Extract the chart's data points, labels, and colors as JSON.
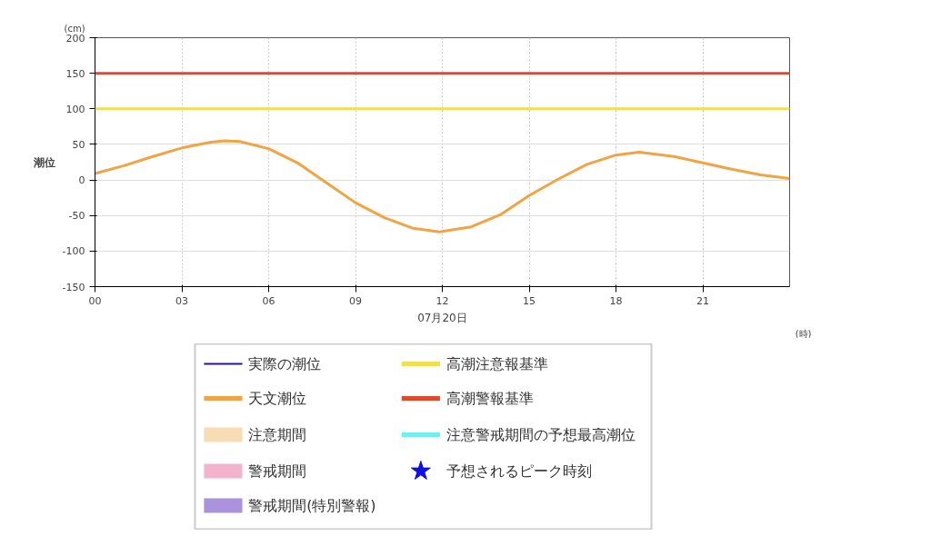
{
  "chart_data": {
    "type": "line",
    "xlabel": "07月20日",
    "ylabel": "潮位",
    "annotations": [
      "(cm)",
      "(時)"
    ],
    "xlim": [
      0,
      24
    ],
    "ylim": [
      -150,
      200
    ],
    "xticks": [
      {
        "value": 0,
        "label": "00"
      },
      {
        "value": 3,
        "label": "03"
      },
      {
        "value": 6,
        "label": "06"
      },
      {
        "value": 9,
        "label": "09"
      },
      {
        "value": 12,
        "label": "12"
      },
      {
        "value": 15,
        "label": "15"
      },
      {
        "value": 18,
        "label": "18"
      },
      {
        "value": 21,
        "label": "21"
      }
    ],
    "yticks": [
      -150,
      -100,
      -50,
      0,
      50,
      100,
      150,
      200
    ],
    "grid": true,
    "legend": "bottom",
    "marker": "none",
    "line_style": "solid",
    "series": [
      {
        "name": "実際の潮位",
        "type": "line",
        "color": "#2a0fa0"
      },
      {
        "name": "天文潮位",
        "color": "#f0a443",
        "x": [
          0,
          1,
          2,
          3,
          4,
          4.5,
          5,
          6,
          7,
          8,
          9,
          10,
          11,
          11.9,
          13,
          14,
          15,
          16,
          17,
          18,
          18.8,
          20,
          21,
          22,
          23,
          24
        ],
        "values": [
          9,
          20,
          33,
          45,
          53,
          55,
          54,
          44,
          24,
          -4,
          -32,
          -53,
          -68,
          -73,
          -66,
          -49,
          -22,
          1,
          22,
          35,
          39,
          33,
          24,
          15,
          7,
          2
        ]
      },
      {
        "name": "注意期間",
        "type": "area",
        "color": "#f7dcb4"
      },
      {
        "name": "警戒期間",
        "type": "area",
        "color": "#f2b3cc"
      },
      {
        "name": "警戒期間(特別警報)",
        "type": "area",
        "color": "#ab92dc"
      },
      {
        "name": "注意警戒期間の予想最高潮位",
        "type": "line",
        "color": "#6ff0f0"
      },
      {
        "name": "予想されるピーク時刻",
        "type": "scatter",
        "marker": "star",
        "color": "#1010e0"
      }
    ],
    "ref_lines": [
      {
        "axis": "y",
        "value": 100,
        "label": "高潮注意報基準",
        "color": "#f0e050"
      },
      {
        "axis": "y",
        "value": 150,
        "label": "高潮警報基準",
        "color": "#e04a2a"
      }
    ]
  }
}
